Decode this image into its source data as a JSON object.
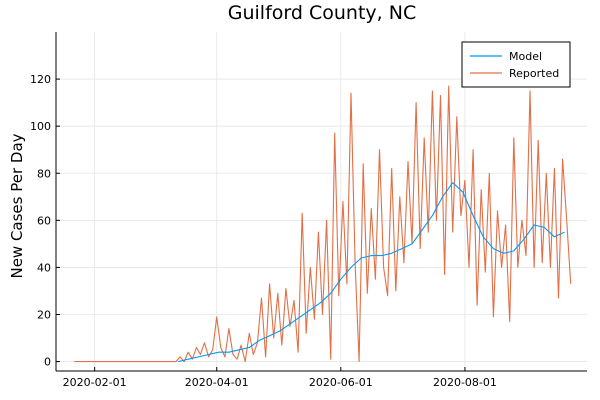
{
  "chart_data": {
    "type": "line",
    "title": "Guilford County, NC",
    "xlabel": "",
    "ylabel": "New Cases Per Day",
    "x_ticks": [
      "2020-02-01",
      "2020-04-01",
      "2020-06-01",
      "2020-08-01"
    ],
    "y_ticks": [
      0,
      20,
      40,
      60,
      80,
      100,
      120
    ],
    "xlim": [
      "2020-01-13",
      "2020-09-30"
    ],
    "ylim": [
      -4,
      140
    ],
    "grid": true,
    "legend_position": "top-right",
    "series": [
      {
        "name": "Model",
        "color": "#009af9",
        "points": [
          [
            "2020-03-13",
            0
          ],
          [
            "2020-03-18",
            1
          ],
          [
            "2020-03-23",
            2
          ],
          [
            "2020-03-28",
            3
          ],
          [
            "2020-04-02",
            4
          ],
          [
            "2020-04-07",
            4
          ],
          [
            "2020-04-12",
            5
          ],
          [
            "2020-04-17",
            6
          ],
          [
            "2020-04-22",
            9
          ],
          [
            "2020-04-27",
            11
          ],
          [
            "2020-05-02",
            13
          ],
          [
            "2020-05-07",
            16
          ],
          [
            "2020-05-12",
            19
          ],
          [
            "2020-05-17",
            22
          ],
          [
            "2020-05-22",
            25
          ],
          [
            "2020-05-27",
            29
          ],
          [
            "2020-06-01",
            35
          ],
          [
            "2020-06-06",
            40
          ],
          [
            "2020-06-11",
            44
          ],
          [
            "2020-06-16",
            45
          ],
          [
            "2020-06-21",
            45
          ],
          [
            "2020-06-26",
            46
          ],
          [
            "2020-07-01",
            48
          ],
          [
            "2020-07-06",
            50
          ],
          [
            "2020-07-11",
            56
          ],
          [
            "2020-07-16",
            62
          ],
          [
            "2020-07-21",
            70
          ],
          [
            "2020-07-26",
            76
          ],
          [
            "2020-07-31",
            72
          ],
          [
            "2020-08-05",
            62
          ],
          [
            "2020-08-10",
            53
          ],
          [
            "2020-08-15",
            48
          ],
          [
            "2020-08-20",
            46
          ],
          [
            "2020-08-25",
            47
          ],
          [
            "2020-08-30",
            52
          ],
          [
            "2020-09-04",
            58
          ],
          [
            "2020-09-09",
            57
          ],
          [
            "2020-09-14",
            53
          ],
          [
            "2020-09-19",
            55
          ]
        ]
      },
      {
        "name": "Reported",
        "color": "#e26f46",
        "points": [
          [
            "2020-01-22",
            0
          ],
          [
            "2020-03-12",
            0
          ],
          [
            "2020-03-14",
            2
          ],
          [
            "2020-03-16",
            0
          ],
          [
            "2020-03-18",
            4
          ],
          [
            "2020-03-20",
            1
          ],
          [
            "2020-03-22",
            6
          ],
          [
            "2020-03-24",
            3
          ],
          [
            "2020-03-26",
            8
          ],
          [
            "2020-03-28",
            2
          ],
          [
            "2020-03-30",
            5
          ],
          [
            "2020-04-01",
            19
          ],
          [
            "2020-04-03",
            6
          ],
          [
            "2020-04-05",
            2
          ],
          [
            "2020-04-07",
            14
          ],
          [
            "2020-04-09",
            3
          ],
          [
            "2020-04-11",
            1
          ],
          [
            "2020-04-13",
            7
          ],
          [
            "2020-04-15",
            0
          ],
          [
            "2020-04-17",
            12
          ],
          [
            "2020-04-19",
            3
          ],
          [
            "2020-04-21",
            8
          ],
          [
            "2020-04-23",
            27
          ],
          [
            "2020-04-25",
            2
          ],
          [
            "2020-04-27",
            33
          ],
          [
            "2020-04-29",
            10
          ],
          [
            "2020-05-01",
            29
          ],
          [
            "2020-05-03",
            7
          ],
          [
            "2020-05-05",
            31
          ],
          [
            "2020-05-07",
            15
          ],
          [
            "2020-05-09",
            26
          ],
          [
            "2020-05-11",
            4
          ],
          [
            "2020-05-13",
            63
          ],
          [
            "2020-05-15",
            12
          ],
          [
            "2020-05-17",
            40
          ],
          [
            "2020-05-19",
            18
          ],
          [
            "2020-05-21",
            55
          ],
          [
            "2020-05-23",
            20
          ],
          [
            "2020-05-25",
            60
          ],
          [
            "2020-05-27",
            1
          ],
          [
            "2020-05-29",
            97
          ],
          [
            "2020-05-31",
            28
          ],
          [
            "2020-06-02",
            68
          ],
          [
            "2020-06-04",
            33
          ],
          [
            "2020-06-06",
            114
          ],
          [
            "2020-06-08",
            42
          ],
          [
            "2020-06-10",
            0
          ],
          [
            "2020-06-12",
            84
          ],
          [
            "2020-06-14",
            29
          ],
          [
            "2020-06-16",
            65
          ],
          [
            "2020-06-18",
            35
          ],
          [
            "2020-06-20",
            90
          ],
          [
            "2020-06-22",
            40
          ],
          [
            "2020-06-24",
            28
          ],
          [
            "2020-06-26",
            82
          ],
          [
            "2020-06-28",
            30
          ],
          [
            "2020-06-30",
            70
          ],
          [
            "2020-07-02",
            42
          ],
          [
            "2020-07-04",
            85
          ],
          [
            "2020-07-06",
            50
          ],
          [
            "2020-07-08",
            110
          ],
          [
            "2020-07-10",
            48
          ],
          [
            "2020-07-12",
            95
          ],
          [
            "2020-07-14",
            55
          ],
          [
            "2020-07-16",
            115
          ],
          [
            "2020-07-18",
            60
          ],
          [
            "2020-07-20",
            113
          ],
          [
            "2020-07-22",
            37
          ],
          [
            "2020-07-24",
            117
          ],
          [
            "2020-07-26",
            55
          ],
          [
            "2020-07-28",
            104
          ],
          [
            "2020-07-30",
            62
          ],
          [
            "2020-08-01",
            77
          ],
          [
            "2020-08-03",
            40
          ],
          [
            "2020-08-05",
            90
          ],
          [
            "2020-08-07",
            24
          ],
          [
            "2020-08-09",
            73
          ],
          [
            "2020-08-11",
            38
          ],
          [
            "2020-08-13",
            80
          ],
          [
            "2020-08-15",
            19
          ],
          [
            "2020-08-17",
            64
          ],
          [
            "2020-08-19",
            40
          ],
          [
            "2020-08-21",
            58
          ],
          [
            "2020-08-23",
            17
          ],
          [
            "2020-08-25",
            95
          ],
          [
            "2020-08-27",
            40
          ],
          [
            "2020-08-29",
            60
          ],
          [
            "2020-08-31",
            45
          ],
          [
            "2020-09-02",
            115
          ],
          [
            "2020-09-04",
            40
          ],
          [
            "2020-09-06",
            94
          ],
          [
            "2020-09-08",
            42
          ],
          [
            "2020-09-10",
            80
          ],
          [
            "2020-09-12",
            40
          ],
          [
            "2020-09-14",
            82
          ],
          [
            "2020-09-16",
            27
          ],
          [
            "2020-09-18",
            86
          ],
          [
            "2020-09-20",
            60
          ],
          [
            "2020-09-22",
            33
          ]
        ]
      }
    ]
  }
}
